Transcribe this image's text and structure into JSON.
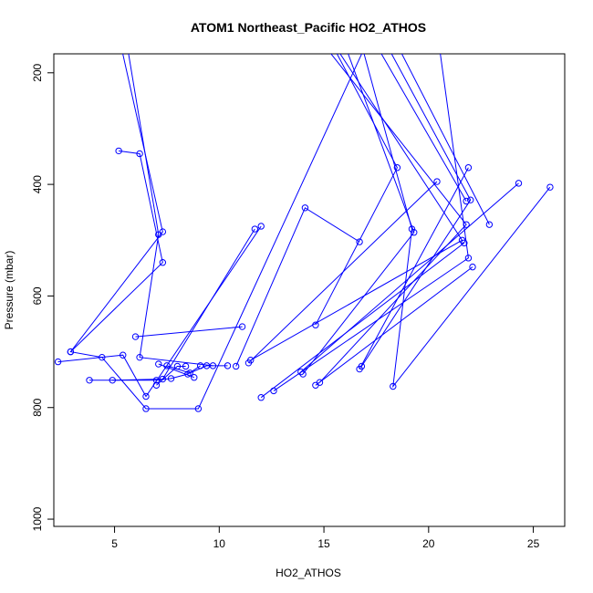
{
  "chart_data": {
    "type": "line",
    "title": "ATOM1 Northeast_Pacific HO2_ATHOS",
    "xlabel": "HO2_ATHOS",
    "ylabel": "Pressure (mbar)",
    "xlim": [
      2.1,
      26.5
    ],
    "ylim": [
      1013,
      166
    ],
    "y_reversed": true,
    "x_ticks": [
      5,
      10,
      15,
      20,
      25
    ],
    "y_ticks": [
      200,
      400,
      600,
      800,
      1000
    ],
    "grid": false,
    "legend": "none",
    "color": "#0000ff",
    "marker": "open-circle",
    "series": [
      {
        "points": [
          [
            5.3,
            150
          ],
          [
            7.3,
            485
          ],
          [
            2.9,
            700
          ]
        ]
      },
      {
        "points": [
          [
            5.6,
            150
          ],
          [
            7.1,
            490
          ],
          [
            6.2,
            710
          ],
          [
            9.7,
            725
          ]
        ]
      },
      {
        "points": [
          [
            5.2,
            340
          ],
          [
            6.2,
            345
          ],
          [
            7.3,
            540
          ],
          [
            2.9,
            700
          ],
          [
            4.4,
            710
          ],
          [
            6.5,
            802
          ],
          [
            9.0,
            802
          ],
          [
            17.0,
            150
          ]
        ]
      },
      {
        "points": [
          [
            2.3,
            718
          ],
          [
            5.4,
            706
          ],
          [
            6.5,
            780
          ],
          [
            12.0,
            475
          ]
        ]
      },
      {
        "points": [
          [
            6.0,
            673
          ],
          [
            11.1,
            655
          ]
        ]
      },
      {
        "points": [
          [
            7.5,
            725
          ],
          [
            8.6,
            738
          ],
          [
            9.4,
            725
          ],
          [
            10.4,
            725
          ]
        ]
      },
      {
        "points": [
          [
            7.1,
            722
          ],
          [
            8.8,
            746
          ]
        ]
      },
      {
        "points": [
          [
            3.8,
            751
          ],
          [
            7.0,
            751
          ],
          [
            7.7,
            748
          ],
          [
            8.5,
            740
          ],
          [
            9.1,
            725
          ]
        ]
      },
      {
        "points": [
          [
            4.9,
            751
          ],
          [
            7.3,
            749
          ],
          [
            11.7,
            480
          ]
        ]
      },
      {
        "points": [
          [
            7.0,
            760
          ],
          [
            8.0,
            726
          ],
          [
            8.4,
            726
          ]
        ]
      },
      {
        "points": [
          [
            10.8,
            726
          ],
          [
            14.1,
            442
          ],
          [
            16.7,
            503
          ]
        ]
      },
      {
        "points": [
          [
            11.4,
            720
          ],
          [
            20.4,
            395
          ]
        ]
      },
      {
        "points": [
          [
            12.0,
            782
          ],
          [
            21.7,
            505
          ]
        ]
      },
      {
        "points": [
          [
            13.9,
            736
          ],
          [
            24.3,
            398
          ]
        ]
      },
      {
        "points": [
          [
            14.6,
            652
          ],
          [
            18.5,
            370
          ],
          [
            15.4,
            150
          ]
        ]
      },
      {
        "points": [
          [
            14.6,
            760
          ],
          [
            22.1,
            548
          ]
        ]
      },
      {
        "points": [
          [
            16.0,
            150
          ],
          [
            19.3,
            486
          ],
          [
            14.0,
            740
          ]
        ]
      },
      {
        "points": [
          [
            16.8,
            150
          ],
          [
            19.2,
            480
          ],
          [
            18.3,
            762
          ],
          [
            25.8,
            405
          ]
        ]
      },
      {
        "points": [
          [
            16.7,
            731
          ],
          [
            21.9,
            370
          ]
        ]
      },
      {
        "points": [
          [
            15.0,
            150
          ],
          [
            21.8,
            472
          ],
          [
            14.8,
            755
          ]
        ]
      },
      {
        "points": [
          [
            17.5,
            150
          ],
          [
            21.8,
            430
          ]
        ]
      },
      {
        "points": [
          [
            18.0,
            150
          ],
          [
            22.0,
            428
          ],
          [
            16.8,
            726
          ]
        ]
      },
      {
        "points": [
          [
            15.5,
            150
          ],
          [
            21.6,
            500
          ],
          [
            11.5,
            715
          ]
        ]
      },
      {
        "points": [
          [
            18.5,
            150
          ],
          [
            22.9,
            472
          ]
        ]
      },
      {
        "points": [
          [
            20.5,
            150
          ],
          [
            21.9,
            532
          ],
          [
            12.6,
            770
          ]
        ]
      }
    ]
  }
}
